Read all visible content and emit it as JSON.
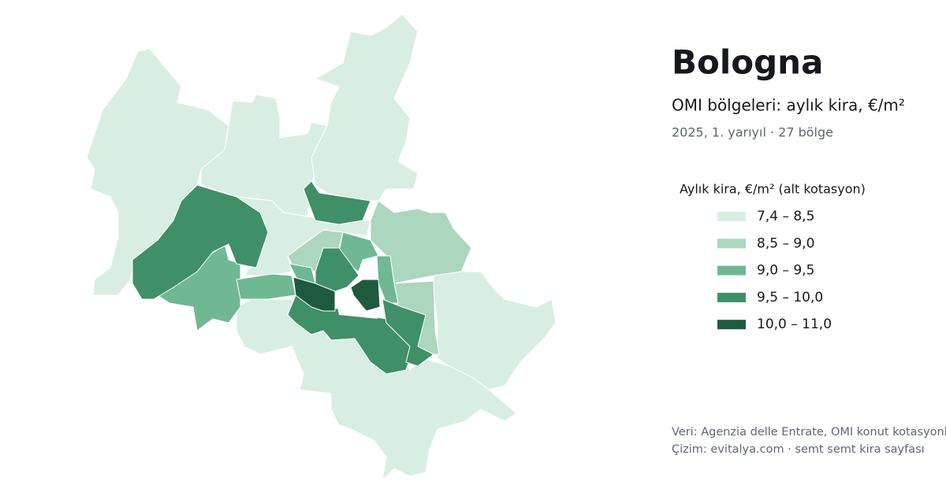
{
  "header": {
    "title": "Bologna",
    "subtitle": "OMI bölgeleri: aylık kira, €/m²",
    "period": "2025, 1. yarıyıl · 27 bölge"
  },
  "legend": {
    "title": "Aylık kira, €/m² (alt kotasyon)",
    "items": [
      {
        "label": "7,4 – 8,5",
        "color": "#d9eee3"
      },
      {
        "label": "8,5 – 9,0",
        "color": "#acd6be"
      },
      {
        "label": "9,0 – 9,5",
        "color": "#6fb893"
      },
      {
        "label": "9,5 – 10,0",
        "color": "#3f8f68"
      },
      {
        "label": "10,0 – 11,0",
        "color": "#1e5a3e"
      }
    ]
  },
  "footer": {
    "source": "Veri: Agenzia delle Entrate, OMI konut kotasyonları",
    "credit": "Çizim: evitalya.com · semt semt kira sayfası"
  }
}
